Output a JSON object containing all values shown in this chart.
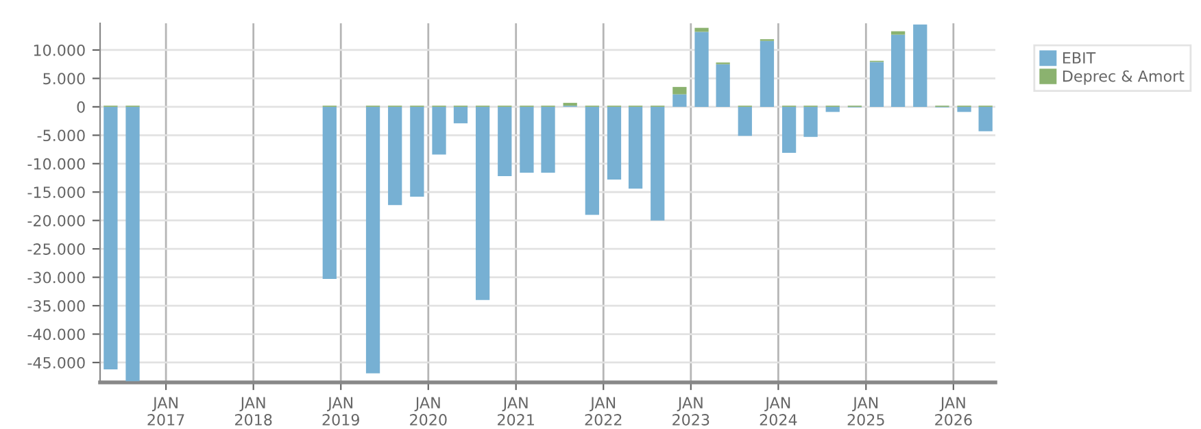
{
  "chart_data": {
    "type": "bar",
    "stacked": true,
    "x": [
      "2016-05-15",
      "2016-08-15",
      "2018-11-15",
      "2019-05-15",
      "2019-08-15",
      "2019-11-15",
      "2020-02-15",
      "2020-05-15",
      "2020-08-15",
      "2020-11-15",
      "2021-02-15",
      "2021-05-15",
      "2021-08-15",
      "2021-11-15",
      "2022-02-15",
      "2022-05-15",
      "2022-08-15",
      "2022-11-15",
      "2023-02-15",
      "2023-05-15",
      "2023-08-15",
      "2023-11-15",
      "2024-02-15",
      "2024-05-15",
      "2024-08-15",
      "2024-11-15",
      "2025-02-15",
      "2025-05-15",
      "2025-08-15",
      "2025-11-15",
      "2026-02-15",
      "2026-05-15"
    ],
    "series": [
      {
        "name": "EBIT",
        "color": "#77b0d3",
        "values": [
          -46200,
          -48300,
          -30300,
          -46900,
          -17300,
          -15800,
          -8400,
          -2900,
          -34000,
          -12200,
          -11600,
          -11600,
          200,
          -19000,
          -12800,
          -14400,
          -20000,
          2200,
          13200,
          7500,
          -5100,
          11600,
          -8100,
          -5300,
          -900,
          -100,
          7900,
          12700,
          14500,
          -100,
          -900,
          -4300
        ]
      },
      {
        "name": "Deprec & Amort",
        "color": "#8bb26f",
        "values": [
          200,
          200,
          200,
          200,
          200,
          200,
          200,
          200,
          200,
          200,
          200,
          200,
          500,
          200,
          200,
          200,
          200,
          1300,
          700,
          300,
          200,
          300,
          200,
          200,
          200,
          200,
          200,
          600,
          null,
          200,
          200,
          200
        ]
      }
    ],
    "xlim": [
      "2016-04-01",
      "2026-06-25"
    ],
    "xticks": [
      {
        "value": "2017-01-01",
        "label": "JAN\n2017"
      },
      {
        "value": "2018-01-01",
        "label": "JAN\n2018"
      },
      {
        "value": "2019-01-01",
        "label": "JAN\n2019"
      },
      {
        "value": "2020-01-01",
        "label": "JAN\n2020"
      },
      {
        "value": "2021-01-01",
        "label": "JAN\n2021"
      },
      {
        "value": "2022-01-01",
        "label": "JAN\n2022"
      },
      {
        "value": "2023-01-01",
        "label": "JAN\n2023"
      },
      {
        "value": "2024-01-01",
        "label": "JAN\n2024"
      },
      {
        "value": "2025-01-01",
        "label": "JAN\n2025"
      },
      {
        "value": "2026-01-01",
        "label": "JAN\n2026"
      }
    ],
    "ylim": [
      -48500,
      14700
    ],
    "yticks": [
      {
        "value": -45000,
        "label": "-45.000"
      },
      {
        "value": -40000,
        "label": "-40.000"
      },
      {
        "value": -35000,
        "label": "-35.000"
      },
      {
        "value": -30000,
        "label": "-30.000"
      },
      {
        "value": -25000,
        "label": "-25.000"
      },
      {
        "value": -20000,
        "label": "-20.000"
      },
      {
        "value": -15000,
        "label": "-15.000"
      },
      {
        "value": -10000,
        "label": "-10.000"
      },
      {
        "value": -5000,
        "label": "-5.000"
      },
      {
        "value": 0,
        "label": "0"
      },
      {
        "value": 5000,
        "label": "5.000"
      },
      {
        "value": 10000,
        "label": "10.000"
      }
    ],
    "grid": true,
    "legend": "top right"
  }
}
